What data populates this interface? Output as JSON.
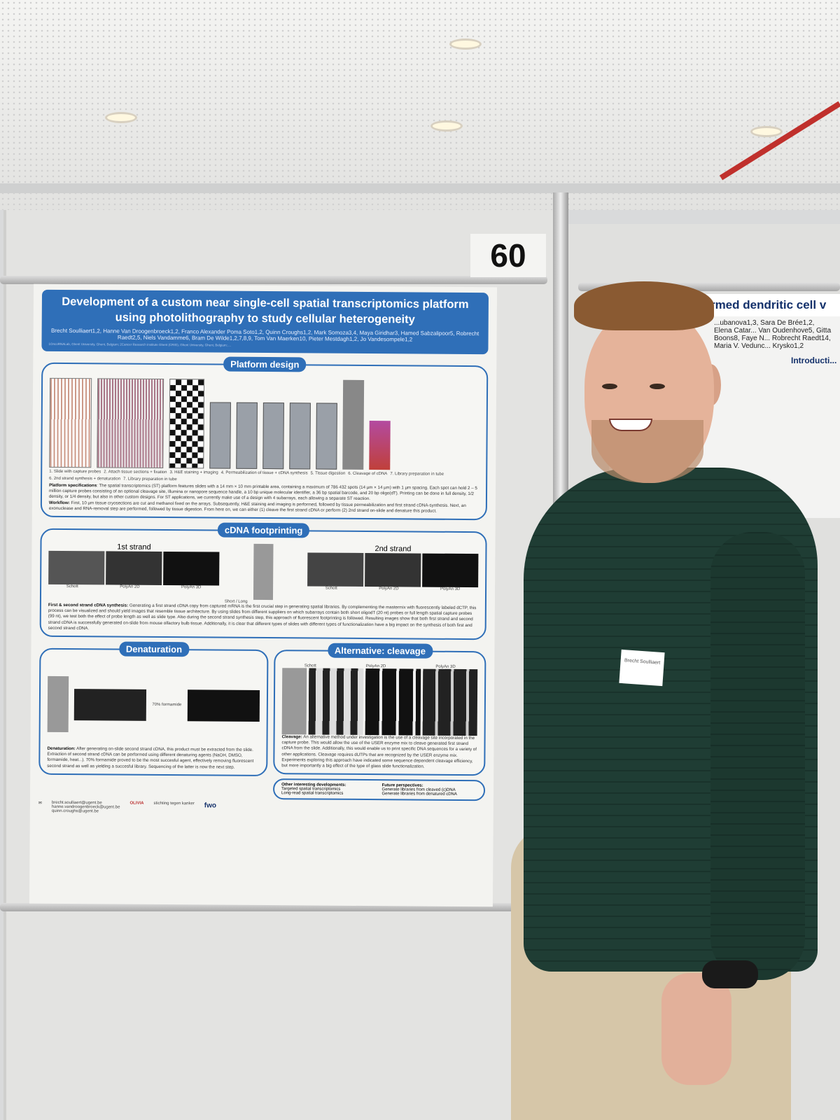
{
  "poster_number": "60",
  "poster": {
    "title": "Development of a custom near single-cell spatial transcriptomics platform using photolithography to study cellular heterogeneity",
    "authors": "Brecht Soulliaert1,2, Hanne Van Droogenbroeck1,2, Franco Alexander Poma Soto1,2, Quinn Croughs1,2, Mark Somoza3,4, Maya Giridhar3, Hamed Sabzalipoor5, Robrecht Raedt2,5, Niels Vandamme6, Bram De Wilde1,2,7,8,9, Tom Van Maerken10, Pieter Mestdagh1,2, Jo Vandesompele1,2",
    "affiliations": "1OncoRNALab, Ghent University, Ghent, Belgium; 2Cancer Research Institute Ghent (CRIG), Ghent University, Ghent, Belgium; ...",
    "sections": {
      "platform": {
        "heading": "Platform design",
        "steps": [
          "1. Slide with capture probes",
          "2. Attach tissue sections + fixation",
          "3. H&E staining + imaging",
          "4. Permeabilization of tissue + cDNA synthesis",
          "5. Tissue digestion",
          "6. Cleavage of cDNA",
          "7. Library preparation in tube",
          "6. 2nd strand synthesis + denaturation",
          "7. Library preparation in tube"
        ],
        "spec_label": "Platform specifications",
        "spec_text": "The spatial transcriptomics (ST) platform features slides with a 14 mm × 10 mm printable area, containing a maximum of 786 432 spots (14 µm × 14 µm) with 1 µm spacing. Each spot can hold 2 – 5 million capture probes consisting of an optional cleavage site, Illumina or nanopore sequence handle, a 10 bp unique molecular identifier, a 36 bp spatial barcode, and 20 bp oligo(dT). Printing can be done in full density, 1/2 density, or 1/4 density, but also in other custom designs. For ST applications, we currently make use of a design with 4 subarrays, each allowing a separate ST reaction.",
        "workflow_label": "Workflow:",
        "workflow_text": "First, 10 µm tissue cryosections are cut and methanol fixed on the arrays. Subsequently, H&E staining and imaging is performed, followed by tissue permeabilization and first strand cDNA-synthesis. Next, an exonuclease and RNA-removal step are performed, followed by tissue digestion. From here on, we can either (1) cleave the first strand cDNA or perform (2) 2nd strand on-slide and denature this product."
      },
      "cdna": {
        "heading": "cDNA footprinting",
        "first": "1st strand",
        "second": "2nd strand",
        "labels": [
          "Schott",
          "PolyAn 2D",
          "PolyAn 3D"
        ],
        "legend": [
          "Short",
          "Long"
        ],
        "label": "First & second strand cDNA synthesis:",
        "text": "Generating a first strand cDNA copy from captured mRNA is the first crucial step in generating spatial libraries. By complementing the mastermix with fluorescently labeled dCTP, this process can be visualized and should yield images that resemble tissue architecture. By using slides from different suppliers on which subarrays contain both short oligodT (20 nt) probes or full length spatial capture probes (99 nt), we test both the effect of probe length as well as slide type. Also during the second strand synthesis step, this approach of fluorescent footprinting is followed. Resulting images show that both first strand and second strand cDNA is successfully generated on-slide from mouse olfactory bulb tissue. Additionally, it is clear that different types of slides with different types of functionalization have a big impact on the synthesis of both first and second strand cDNA."
      },
      "denaturation": {
        "heading": "Denaturation",
        "formamide": "70% formamide",
        "label": "Denaturation:",
        "text": "After generating on-slide second strand cDNA, this product must be extracted from the slide. Extraction of second strand cDNA can be performed using different denaturing agents (NaOH, DMSO, formamide, heat...). 70% formamide proved to be the most succesful agent, effectively removing fluorescent second strand as well as yielding a succesful library. Sequencing of the latter is now the next step."
      },
      "cleavage": {
        "heading": "Alternative: cleavage",
        "labels": [
          "Schott",
          "PolyAn 2D",
          "PolyAn 3D"
        ],
        "label": "Cleavage:",
        "text": "An alternative method under investigation is the use of a cleavage site incorporated in the capture probe. This would allow the use of the USER enzyme mix to cleave generated first strand cDNA from the slide. Additionally, this would enable us to print specific DNA sequences for a variety of other applications. Cleavage requires dUTPs that are recognized by the USER enzyme mix. Experiments exploring this approach have indicated some sequence dependent cleavage efficiency, but more importantly a big effect of the type of glass slide functionalization."
      },
      "other": {
        "heading": "Other interesting developments:",
        "items": [
          "Targeted spatial transcriptomics",
          "Long-read spatial transcriptomics"
        ]
      },
      "future": {
        "heading": "Future perspectives:",
        "items": [
          "Generate libraries from cleaved (c)DNA",
          "Generate libraries from denatured cDNA"
        ]
      }
    },
    "contacts": [
      "brecht.soulliaert@ugent.be",
      "hanne.vandroogenbroeck@ugent.be",
      "quinn.croughs@ugent.be"
    ],
    "logos": [
      "OLIVIA",
      "stichting tegen kanker",
      "fwo"
    ]
  },
  "neighbor_poster": {
    "title": "-is-armed dendritic cell v",
    "authors": "...ubanova1,3, Sara De Brée1,2, Elena Catar... Van Oudenhove5, Gitta Boons8, Faye N... Robrecht Raedt14, Maria V. Vedunc... Krysko1,2",
    "section": "Introducti..."
  },
  "name_badge": "Brecht Soulliaert"
}
